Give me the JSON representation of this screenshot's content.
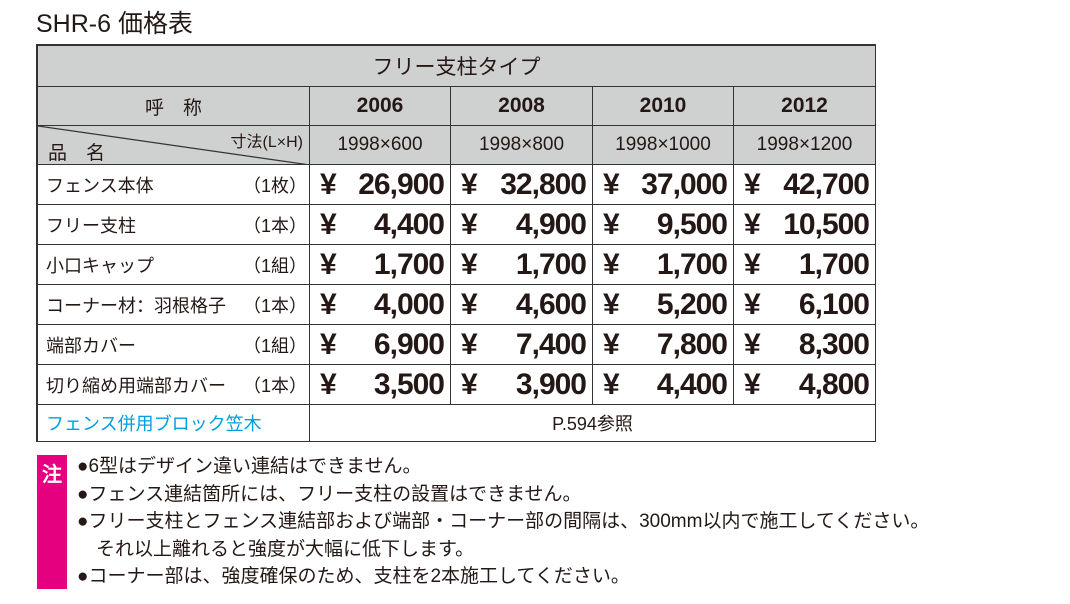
{
  "title": "SHR-6 価格表",
  "table": {
    "type_header": "フリー支柱タイプ",
    "name_header": "呼　称",
    "years": [
      "2006",
      "2008",
      "2010",
      "2012"
    ],
    "item_header": "品　名",
    "size_header": "寸法(L×H)",
    "sizes": [
      "1998×600",
      "1998×800",
      "1998×1000",
      "1998×1200"
    ],
    "currency": "¥",
    "rows": [
      {
        "name": "フェンス本体",
        "unit": "（1枚）",
        "prices": [
          "26,900",
          "32,800",
          "37,000",
          "42,700"
        ]
      },
      {
        "name": "フリー支柱",
        "unit": "（1本）",
        "prices": [
          "4,400",
          "4,900",
          "9,500",
          "10,500"
        ]
      },
      {
        "name": "小口キャップ",
        "unit": "（1組）",
        "prices": [
          "1,700",
          "1,700",
          "1,700",
          "1,700"
        ]
      },
      {
        "name": "コーナー材：羽根格子",
        "unit": "（1本）",
        "prices": [
          "4,000",
          "4,600",
          "5,200",
          "6,100"
        ]
      },
      {
        "name": "端部カバー",
        "unit": "（1組）",
        "prices": [
          "6,900",
          "7,400",
          "7,800",
          "8,300"
        ]
      },
      {
        "name": "切り縮め用端部カバー",
        "unit": "（1本）",
        "prices": [
          "3,500",
          "3,900",
          "4,400",
          "4,800"
        ]
      }
    ],
    "footer": {
      "label": "フェンス併用ブロック笠木",
      "text": "P.594参照"
    }
  },
  "notes": {
    "mark": "注",
    "lines": [
      "●6型はデザイン違い連結はできません。",
      "●フェンス連結箇所には、フリー支柱の設置はできません。",
      "●フリー支柱とフェンス連結部および端部・コーナー部の間隔は、300mm以内で施工してください。",
      "　それ以上離れると強度が大幅に低下します。",
      "●コーナー部は、強度確保のため、支柱を2本施工してください。"
    ]
  }
}
